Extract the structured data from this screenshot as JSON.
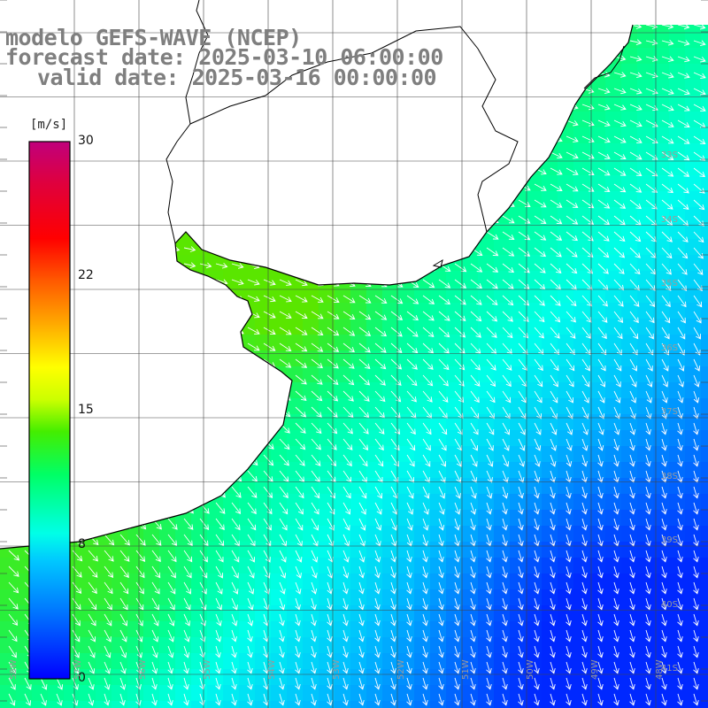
{
  "title": {
    "line1": "modelo GEFS-WAVE (NCEP)",
    "line2": "forecast date: 2025-03-10 06:00:00",
    "line3": "valid date: 2025-03-16 00:00:00"
  },
  "colorbar": {
    "unit": "[m/s]",
    "ticks": [
      "30",
      "22",
      "15",
      "8",
      "0"
    ],
    "tick_values": [
      30,
      22,
      15,
      8,
      0
    ],
    "range": [
      0,
      30
    ],
    "colors": [
      "#0000ff",
      "#0066ff",
      "#00b4ff",
      "#00ffee",
      "#00ff66",
      "#33dd00",
      "#aaff00",
      "#ffff00",
      "#ffaa00",
      "#ff5500",
      "#ff0000",
      "#e0003a",
      "#c0007a"
    ]
  },
  "map": {
    "variable": "wind speed and direction",
    "land_color": "#ffffff",
    "coast_color": "#000000",
    "grid_color": "#333333",
    "arrow_color": "#ffffff",
    "lat_labels": [
      "32S",
      "33S",
      "34S",
      "35S",
      "36S",
      "37S",
      "38S",
      "39S",
      "40S",
      "41S"
    ],
    "lon_labels": [
      "58W",
      "57W",
      "56W",
      "55W",
      "54W",
      "53W",
      "52W",
      "51W",
      "50W",
      "49W",
      "48W"
    ]
  }
}
